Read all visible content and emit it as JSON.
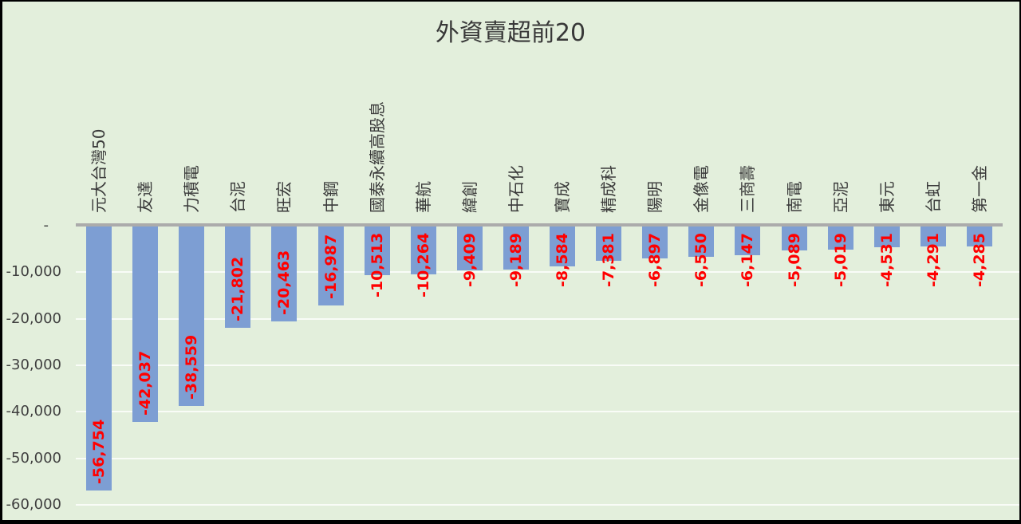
{
  "title": "外資賣超前20",
  "chart_data": {
    "type": "bar",
    "orientation": "vertical-negative",
    "title": "外資賣超前20",
    "categories": [
      "元大台灣50",
      "友達",
      "力積電",
      "台泥",
      "旺宏",
      "中鋼",
      "國泰永續高股息",
      "華航",
      "緯創",
      "中石化",
      "寶成",
      "精成科",
      "陽明",
      "金像電",
      "三商壽",
      "南電",
      "亞泥",
      "東元",
      "台虹",
      "第一金"
    ],
    "values": [
      -56754,
      -42037,
      -38559,
      -21802,
      -20463,
      -16987,
      -10513,
      -10264,
      -9409,
      -9189,
      -8584,
      -7381,
      -6897,
      -6550,
      -6147,
      -5089,
      -5019,
      -4531,
      -4291,
      -4285
    ],
    "value_labels": [
      "-56,754",
      "-42,037",
      "-38,559",
      "-21,802",
      "-20,463",
      "-16,987",
      "-10,513",
      "-10,264",
      "-9,409",
      "-9,189",
      "-8,584",
      "-7,381",
      "-6,897",
      "-6,550",
      "-6,147",
      "-5,089",
      "-5,019",
      "-4,531",
      "-4,291",
      "-4,285"
    ],
    "y_ticks": [
      "-",
      "-10,000",
      "-20,000",
      "-30,000",
      "-40,000",
      "-50,000",
      "-60,000"
    ],
    "ylim": [
      -60000,
      0
    ],
    "y_step": 10000,
    "grid": "horizontal",
    "legend": "none",
    "colors": {
      "background": "#e3efdc",
      "bar": "#7d9ed3",
      "value_label": "#ff0000",
      "axis_line": "#ababab",
      "gridline": "#f2f8ee",
      "text": "#3a3a3a",
      "frame_border": "#000000"
    }
  }
}
